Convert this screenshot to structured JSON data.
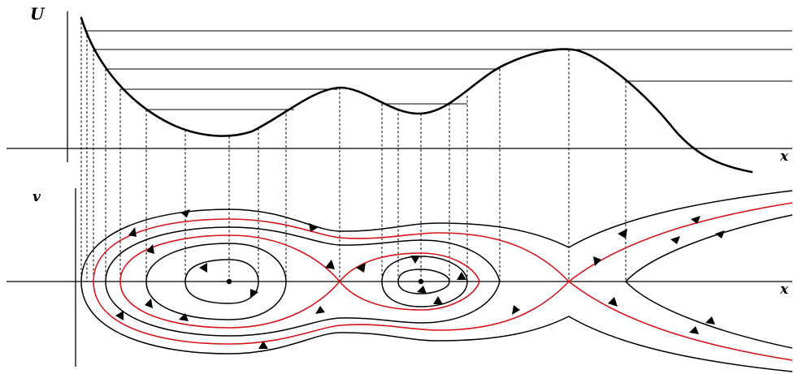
{
  "top_panel": {
    "y_axis_label": "U",
    "x_axis_label": "x"
  },
  "bottom_panel": {
    "y_axis_label": "v",
    "x_axis_label": "x"
  },
  "colors": {
    "curve": "#000000",
    "separatrix": "#d6141a",
    "background": "#ffffff"
  }
}
